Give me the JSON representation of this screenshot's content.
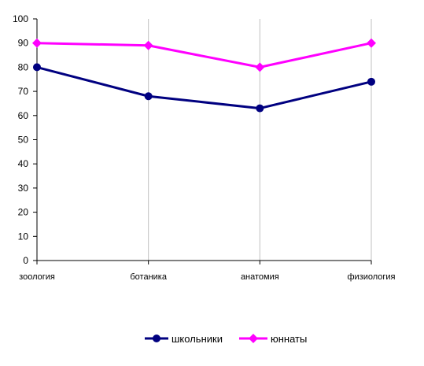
{
  "chart_data": {
    "type": "line",
    "categories": [
      "зоология",
      "ботаника",
      "анатомия",
      "физиология"
    ],
    "series": [
      {
        "name": "школьники",
        "values": [
          80,
          68,
          63,
          74
        ],
        "color": "#000080",
        "marker": "circle"
      },
      {
        "name": "юннаты",
        "values": [
          90,
          89,
          80,
          90
        ],
        "color": "#ff00ff",
        "marker": "diamond"
      }
    ],
    "ylim": [
      0,
      100
    ],
    "yticks": [
      0,
      10,
      20,
      30,
      40,
      50,
      60,
      70,
      80,
      90,
      100
    ],
    "grid": "vertical",
    "legend": "bottom"
  }
}
